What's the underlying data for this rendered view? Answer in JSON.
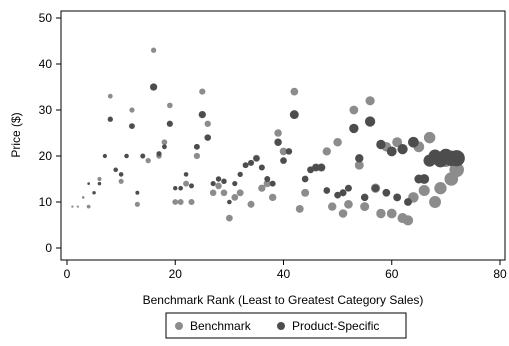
{
  "chart_data": {
    "type": "scatter",
    "title": "",
    "xlabel": "Benchmark Rank (Least to Greatest Category Sales)",
    "ylabel": "Price ($)",
    "xlim": [
      0,
      80
    ],
    "ylim": [
      0,
      50
    ],
    "x_ticks": [
      "0",
      "20",
      "40",
      "60",
      "80"
    ],
    "y_ticks": [
      "0",
      "10",
      "20",
      "30",
      "40",
      "50"
    ],
    "grid": false,
    "legend_position": "bottom",
    "series": [
      {
        "name": "Benchmark",
        "color": "#8c8c8c",
        "points": [
          {
            "x": 1,
            "y": 9,
            "size": 0.3
          },
          {
            "x": 2,
            "y": 9,
            "size": 0.3
          },
          {
            "x": 3,
            "y": 11,
            "size": 0.4
          },
          {
            "x": 4,
            "y": 9,
            "size": 0.8
          },
          {
            "x": 5,
            "y": 12,
            "size": 0.8
          },
          {
            "x": 6,
            "y": 15,
            "size": 1
          },
          {
            "x": 8,
            "y": 33,
            "size": 1.3
          },
          {
            "x": 9,
            "y": 17,
            "size": 1.3
          },
          {
            "x": 10,
            "y": 14.5,
            "size": 1.5
          },
          {
            "x": 12,
            "y": 30,
            "size": 1.5
          },
          {
            "x": 13,
            "y": 9.5,
            "size": 1.5
          },
          {
            "x": 14,
            "y": 20,
            "size": 1.5
          },
          {
            "x": 15,
            "y": 19,
            "size": 1.6
          },
          {
            "x": 16,
            "y": 43,
            "size": 1.6
          },
          {
            "x": 17,
            "y": 20,
            "size": 1.7
          },
          {
            "x": 18,
            "y": 23,
            "size": 1.8
          },
          {
            "x": 19,
            "y": 31,
            "size": 1.8
          },
          {
            "x": 20,
            "y": 10,
            "size": 1.9
          },
          {
            "x": 21,
            "y": 10,
            "size": 2
          },
          {
            "x": 22,
            "y": 14,
            "size": 2
          },
          {
            "x": 23,
            "y": 10,
            "size": 2.1
          },
          {
            "x": 24,
            "y": 20,
            "size": 2.2
          },
          {
            "x": 25,
            "y": 34,
            "size": 2.2
          },
          {
            "x": 26,
            "y": 27,
            "size": 2.3
          },
          {
            "x": 27,
            "y": 12,
            "size": 2.4
          },
          {
            "x": 28,
            "y": 13.5,
            "size": 2.4
          },
          {
            "x": 29,
            "y": 12,
            "size": 2.5
          },
          {
            "x": 30,
            "y": 6.5,
            "size": 2.6
          },
          {
            "x": 31,
            "y": 11,
            "size": 2.6
          },
          {
            "x": 32,
            "y": 12,
            "size": 2.7
          },
          {
            "x": 34,
            "y": 9.5,
            "size": 2.8
          },
          {
            "x": 35,
            "y": 19.5,
            "size": 2.9
          },
          {
            "x": 36,
            "y": 13,
            "size": 3
          },
          {
            "x": 37,
            "y": 14,
            "size": 3
          },
          {
            "x": 38,
            "y": 11,
            "size": 3.1
          },
          {
            "x": 39,
            "y": 25,
            "size": 3.2
          },
          {
            "x": 40,
            "y": 21,
            "size": 3.3
          },
          {
            "x": 42,
            "y": 34,
            "size": 3.4
          },
          {
            "x": 43,
            "y": 8.5,
            "size": 3.5
          },
          {
            "x": 44,
            "y": 12,
            "size": 3.6
          },
          {
            "x": 46,
            "y": 17.5,
            "size": 3.7
          },
          {
            "x": 47,
            "y": 17.5,
            "size": 3.8
          },
          {
            "x": 48,
            "y": 21,
            "size": 3.9
          },
          {
            "x": 49,
            "y": 9,
            "size": 4
          },
          {
            "x": 50,
            "y": 23,
            "size": 4.1
          },
          {
            "x": 51,
            "y": 7.5,
            "size": 4.2
          },
          {
            "x": 52,
            "y": 9.5,
            "size": 4.3
          },
          {
            "x": 53,
            "y": 30,
            "size": 4.4
          },
          {
            "x": 54,
            "y": 18,
            "size": 4.5
          },
          {
            "x": 55,
            "y": 9,
            "size": 4.6
          },
          {
            "x": 56,
            "y": 32,
            "size": 4.8
          },
          {
            "x": 57,
            "y": 13,
            "size": 4.9
          },
          {
            "x": 58,
            "y": 7.5,
            "size": 5
          },
          {
            "x": 59,
            "y": 22,
            "size": 5.2
          },
          {
            "x": 60,
            "y": 7.5,
            "size": 5.4
          },
          {
            "x": 61,
            "y": 23,
            "size": 5.6
          },
          {
            "x": 62,
            "y": 6.5,
            "size": 5.8
          },
          {
            "x": 63,
            "y": 6,
            "size": 6
          },
          {
            "x": 64,
            "y": 11,
            "size": 6.3
          },
          {
            "x": 65,
            "y": 22,
            "size": 6.6
          },
          {
            "x": 66,
            "y": 12.5,
            "size": 7
          },
          {
            "x": 67,
            "y": 24,
            "size": 7.4
          },
          {
            "x": 68,
            "y": 10,
            "size": 8
          },
          {
            "x": 69,
            "y": 13,
            "size": 8.6
          },
          {
            "x": 70,
            "y": 19,
            "size": 9.4
          },
          {
            "x": 71,
            "y": 15,
            "size": 10.5
          },
          {
            "x": 72,
            "y": 17,
            "size": 12
          }
        ]
      },
      {
        "name": "Product-Specific",
        "color": "#4d4d4d",
        "points": [
          {
            "x": 4,
            "y": 14,
            "size": 0.4
          },
          {
            "x": 5,
            "y": 12,
            "size": 0.5
          },
          {
            "x": 6,
            "y": 14,
            "size": 0.7
          },
          {
            "x": 7,
            "y": 20,
            "size": 1
          },
          {
            "x": 8,
            "y": 28,
            "size": 1.6
          },
          {
            "x": 9,
            "y": 17,
            "size": 1
          },
          {
            "x": 10,
            "y": 16,
            "size": 1.2
          },
          {
            "x": 11,
            "y": 20,
            "size": 1.2
          },
          {
            "x": 12,
            "y": 26.5,
            "size": 1.9
          },
          {
            "x": 13,
            "y": 12,
            "size": 0.9
          },
          {
            "x": 14,
            "y": 20,
            "size": 1.2
          },
          {
            "x": 16,
            "y": 35,
            "size": 3
          },
          {
            "x": 17,
            "y": 20.5,
            "size": 1.5
          },
          {
            "x": 18,
            "y": 22,
            "size": 1.3
          },
          {
            "x": 19,
            "y": 27,
            "size": 2.2
          },
          {
            "x": 20,
            "y": 13,
            "size": 1.1
          },
          {
            "x": 21,
            "y": 13,
            "size": 1.2
          },
          {
            "x": 22,
            "y": 16,
            "size": 1.2
          },
          {
            "x": 23,
            "y": 13.5,
            "size": 1.4
          },
          {
            "x": 24,
            "y": 22,
            "size": 2
          },
          {
            "x": 25,
            "y": 29,
            "size": 3
          },
          {
            "x": 26,
            "y": 24,
            "size": 2.4
          },
          {
            "x": 27,
            "y": 14,
            "size": 1.5
          },
          {
            "x": 28,
            "y": 15,
            "size": 1.7
          },
          {
            "x": 29,
            "y": 14.5,
            "size": 1.7
          },
          {
            "x": 30,
            "y": 10,
            "size": 1.2
          },
          {
            "x": 31,
            "y": 14,
            "size": 1.5
          },
          {
            "x": 32,
            "y": 16,
            "size": 1.6
          },
          {
            "x": 33,
            "y": 18,
            "size": 2
          },
          {
            "x": 34,
            "y": 18.5,
            "size": 2.1
          },
          {
            "x": 35,
            "y": 19.5,
            "size": 2
          },
          {
            "x": 36,
            "y": 17.5,
            "size": 2.1
          },
          {
            "x": 37,
            "y": 15,
            "size": 2
          },
          {
            "x": 38,
            "y": 14,
            "size": 2
          },
          {
            "x": 39,
            "y": 23,
            "size": 3.2
          },
          {
            "x": 40,
            "y": 19,
            "size": 2.5
          },
          {
            "x": 41,
            "y": 21,
            "size": 2.4
          },
          {
            "x": 42,
            "y": 29,
            "size": 4.5
          },
          {
            "x": 44,
            "y": 15,
            "size": 2.5
          },
          {
            "x": 45,
            "y": 17,
            "size": 2.7
          },
          {
            "x": 46,
            "y": 17.5,
            "size": 3
          },
          {
            "x": 47,
            "y": 17.5,
            "size": 3.2
          },
          {
            "x": 48,
            "y": 12.5,
            "size": 2.5
          },
          {
            "x": 50,
            "y": 11.5,
            "size": 2.6
          },
          {
            "x": 51,
            "y": 12,
            "size": 2.8
          },
          {
            "x": 52,
            "y": 13,
            "size": 2.7
          },
          {
            "x": 53,
            "y": 26,
            "size": 5
          },
          {
            "x": 54,
            "y": 19.5,
            "size": 4
          },
          {
            "x": 55,
            "y": 11,
            "size": 3.2
          },
          {
            "x": 56,
            "y": 27.5,
            "size": 6
          },
          {
            "x": 57,
            "y": 13,
            "size": 3.2
          },
          {
            "x": 58,
            "y": 22.5,
            "size": 5
          },
          {
            "x": 59,
            "y": 12,
            "size": 3.4
          },
          {
            "x": 60,
            "y": 21,
            "size": 5.5
          },
          {
            "x": 61,
            "y": 11,
            "size": 3.5
          },
          {
            "x": 62,
            "y": 21.5,
            "size": 6
          },
          {
            "x": 63,
            "y": 10,
            "size": 3.5
          },
          {
            "x": 64,
            "y": 23,
            "size": 6.5
          },
          {
            "x": 65,
            "y": 15,
            "size": 4.5
          },
          {
            "x": 66,
            "y": 15,
            "size": 5.5
          },
          {
            "x": 67,
            "y": 19,
            "size": 8.5
          },
          {
            "x": 68,
            "y": 20,
            "size": 9.5
          },
          {
            "x": 69,
            "y": 19,
            "size": 10.5
          },
          {
            "x": 70,
            "y": 20,
            "size": 12
          },
          {
            "x": 71,
            "y": 19.5,
            "size": 13.5
          },
          {
            "x": 72,
            "y": 19.5,
            "size": 15
          }
        ]
      }
    ]
  }
}
